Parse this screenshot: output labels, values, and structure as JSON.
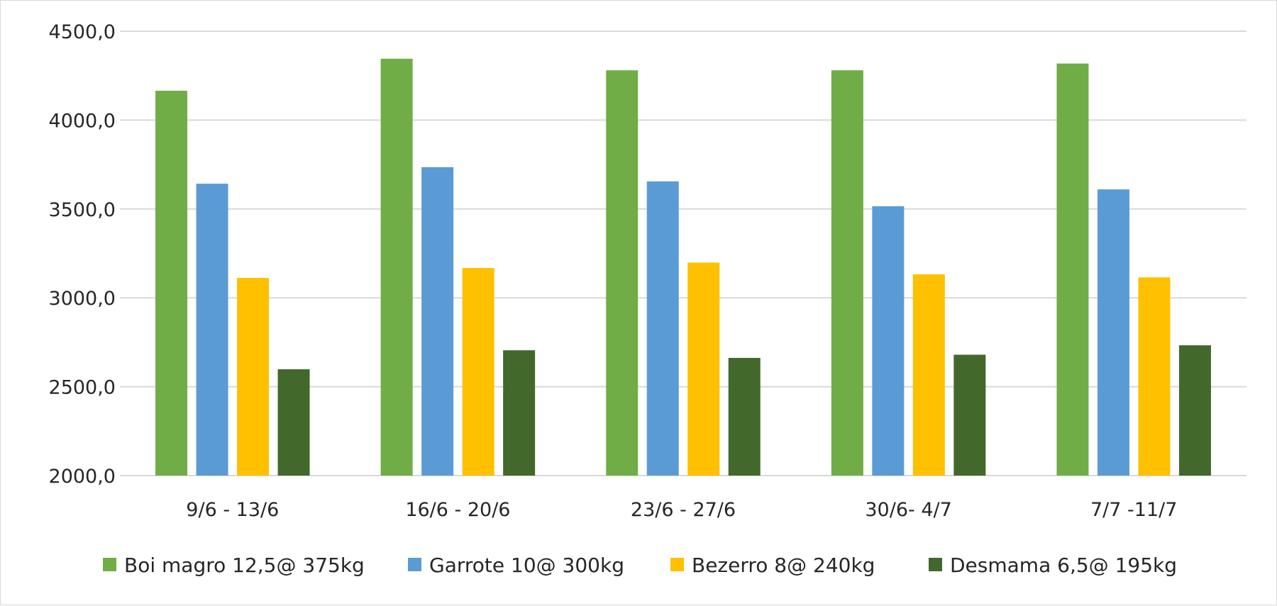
{
  "chart_data": {
    "type": "bar",
    "categories": [
      "9/6 - 13/6",
      "16/6 - 20/6",
      "23/6 - 27/6",
      "30/6- 4/7",
      "7/7 -11/7"
    ],
    "series": [
      {
        "name": "Boi magro 12,5@ 375kg",
        "color": "#70ad47",
        "values": [
          4165,
          4345,
          4280,
          4280,
          4318
        ]
      },
      {
        "name": "Garrote 10@ 300kg",
        "color": "#5b9bd5",
        "values": [
          3642,
          3735,
          3655,
          3515,
          3610
        ]
      },
      {
        "name": "Bezerro 8@ 240kg",
        "color": "#ffc000",
        "values": [
          3112,
          3168,
          3198,
          3132,
          3115
        ]
      },
      {
        "name": "Desmama 6,5@ 195kg",
        "color": "#43682b",
        "values": [
          2598,
          2705,
          2662,
          2680,
          2733
        ]
      }
    ],
    "ylim": [
      2000,
      4500
    ],
    "yticks": [
      "2000,0",
      "2500,0",
      "3000,0",
      "3500,0",
      "4000,0",
      "4500,0"
    ],
    "ytick_values": [
      2000,
      2500,
      3000,
      3500,
      4000,
      4500
    ],
    "grid": true,
    "legend_position": "bottom",
    "gridline_color": "#d9d9d9"
  }
}
